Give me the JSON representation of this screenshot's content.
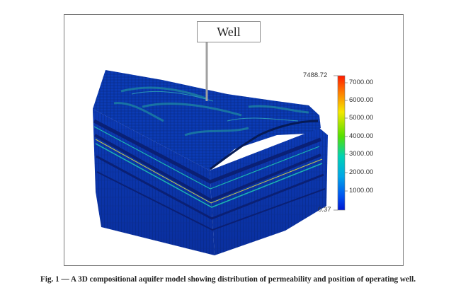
{
  "figure": {
    "well_label": "Well",
    "colorbar": {
      "max_label": "7488.72",
      "min_label": "0.37",
      "ticks": [
        "7000.00",
        "6000.00",
        "5000.00",
        "4000.00",
        "3000.00",
        "2000.00",
        "1000.00"
      ],
      "colors": [
        "#ff1a00",
        "#ffb000",
        "#f5f500",
        "#66e800",
        "#00d8a0",
        "#00b4e6",
        "#0050f0",
        "#0018d0"
      ]
    },
    "model_colors": {
      "base": "#0a3fbf",
      "dark": "#0a1e70",
      "grid": "#062060",
      "accent": "#1fc4b0",
      "hot": "#d8d840"
    }
  },
  "caption": "Fig. 1 — A 3D compositional aquifer model showing distribution of permeability and position of operating well."
}
